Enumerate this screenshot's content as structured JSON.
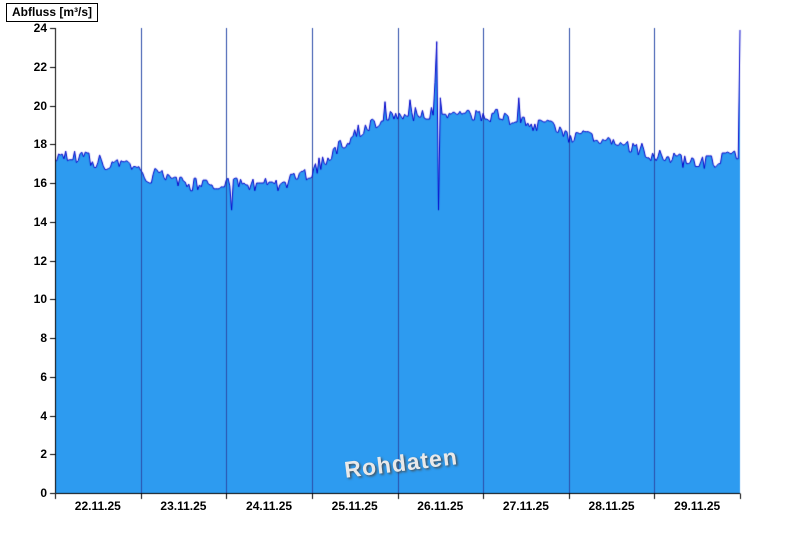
{
  "chart_data": {
    "type": "area",
    "title": "",
    "ylabel": "Abfluss [m³/s]",
    "watermark": "Rohdaten",
    "xlabel": "",
    "x_tick_labels": [
      "22.11.25",
      "23.11.25",
      "24.11.25",
      "25.11.25",
      "26.11.25",
      "27.11.25",
      "28.11.25",
      "29.11.25"
    ],
    "y_ticks": [
      0,
      2,
      4,
      6,
      8,
      10,
      12,
      14,
      16,
      18,
      20,
      22,
      24
    ],
    "ylim": [
      0,
      24
    ],
    "x_days": 8,
    "grid": {
      "vertical_day_lines": true,
      "horizontal": false
    },
    "legend_position": "none",
    "colors": {
      "fill": "#2d9bf0",
      "line": "#0000c8",
      "grid": "#2b4ba8",
      "axis": "#000000",
      "watermark": "#e9e9e9"
    },
    "series": [
      {
        "name": "Abfluss Rohdaten",
        "points_per_day": 48,
        "noise_amplitude": 0.4,
        "noise_seed": 7,
        "trend": [
          [
            0.0,
            17.5
          ],
          [
            0.3,
            17.3
          ],
          [
            0.6,
            17.0
          ],
          [
            0.9,
            16.7
          ],
          [
            1.1,
            16.4
          ],
          [
            1.4,
            16.1
          ],
          [
            1.7,
            15.9
          ],
          [
            2.0,
            15.9
          ],
          [
            2.3,
            15.8
          ],
          [
            2.6,
            15.9
          ],
          [
            2.9,
            16.3
          ],
          [
            3.05,
            16.8
          ],
          [
            3.2,
            17.4
          ],
          [
            3.4,
            18.2
          ],
          [
            3.6,
            18.9
          ],
          [
            3.8,
            19.3
          ],
          [
            4.0,
            19.5
          ],
          [
            4.3,
            19.55
          ],
          [
            4.6,
            19.5
          ],
          [
            4.9,
            19.45
          ],
          [
            5.2,
            19.4
          ],
          [
            5.5,
            19.2
          ],
          [
            5.8,
            18.9
          ],
          [
            6.0,
            18.5
          ],
          [
            6.3,
            18.2
          ],
          [
            6.6,
            18.0
          ],
          [
            6.9,
            17.6
          ],
          [
            7.1,
            17.3
          ],
          [
            7.4,
            17.1
          ],
          [
            7.7,
            17.1
          ],
          [
            7.9,
            17.3
          ],
          [
            7.98,
            17.6
          ],
          [
            8.0,
            18.5
          ]
        ],
        "spikes": [
          [
            2.07,
            14.6
          ],
          [
            3.85,
            20.2
          ],
          [
            4.15,
            20.3
          ],
          [
            4.43,
            21.2
          ],
          [
            4.45,
            23.3
          ],
          [
            4.48,
            14.6
          ],
          [
            4.5,
            20.4
          ],
          [
            5.42,
            20.4
          ],
          [
            8.0,
            23.9
          ]
        ]
      }
    ]
  }
}
